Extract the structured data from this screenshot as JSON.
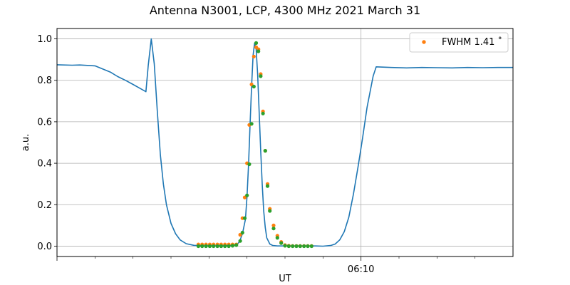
{
  "chart_data": {
    "type": "line",
    "title": "Antenna N3001, LCP, 4300 MHz 2021 March 31",
    "xlabel": "UT",
    "ylabel": "a.u.",
    "xlim": [
      0,
      30
    ],
    "ylim": [
      -0.05,
      1.05
    ],
    "x_unit": "minutes (axis spans about 06:00–06:15 UT; one tick labelled)",
    "x_tick_labels": [
      {
        "x": 20,
        "label": "06:10"
      }
    ],
    "x_ticks": [
      0,
      20
    ],
    "x_minor_ticks": [
      2.5,
      5,
      7.5,
      10,
      12.5,
      15,
      17.5,
      22.5,
      25,
      27.5
    ],
    "y_ticks": [
      0.0,
      0.2,
      0.4,
      0.6,
      0.8,
      1.0
    ],
    "y_tick_labels": [
      "0.0",
      "0.2",
      "0.4",
      "0.6",
      "0.8",
      "1.0"
    ],
    "grid": true,
    "legend": {
      "position": "top-right",
      "entries": [
        {
          "label": "FWHM 1.41$^\\circ$",
          "display": "FWHM 1.41 ˚",
          "marker": "dot",
          "color": "#ff7f0e"
        }
      ]
    },
    "series": [
      {
        "name": "",
        "style": "line",
        "color": "#1f77b4",
        "x": [
          0,
          1,
          1.5,
          2,
          2.5,
          3,
          3.5,
          4,
          4.5,
          5,
          5.5,
          5.85,
          6.0,
          6.2,
          6.4,
          6.6,
          6.8,
          7.0,
          7.2,
          7.5,
          7.8,
          8.1,
          8.5,
          9.0,
          9.5,
          10.0,
          11.0,
          11.8,
          12.0,
          12.2,
          12.4,
          12.5,
          12.6,
          12.7,
          12.8,
          12.9,
          13.0,
          13.1,
          13.2,
          13.3,
          13.4,
          13.5,
          13.6,
          13.7,
          13.8,
          14.0,
          14.2,
          14.5,
          15,
          16,
          17,
          17.5,
          18.0,
          18.3,
          18.6,
          18.9,
          19.2,
          19.5,
          19.8,
          20.1,
          20.4,
          20.8,
          21.0,
          22,
          23,
          24,
          25,
          26,
          27,
          28,
          29,
          30
        ],
        "y": [
          0.875,
          0.873,
          0.874,
          0.872,
          0.87,
          0.855,
          0.84,
          0.818,
          0.8,
          0.78,
          0.76,
          0.745,
          0.87,
          1.0,
          0.88,
          0.65,
          0.44,
          0.3,
          0.2,
          0.11,
          0.06,
          0.03,
          0.012,
          0.004,
          0.002,
          0.002,
          0.002,
          0.005,
          0.02,
          0.06,
          0.13,
          0.24,
          0.39,
          0.58,
          0.77,
          0.92,
          0.98,
          0.95,
          0.83,
          0.65,
          0.46,
          0.3,
          0.17,
          0.09,
          0.04,
          0.01,
          0.003,
          0.001,
          0.001,
          0.001,
          0.001,
          0.0,
          0.003,
          0.01,
          0.03,
          0.07,
          0.14,
          0.25,
          0.38,
          0.52,
          0.67,
          0.82,
          0.865,
          0.862,
          0.86,
          0.862,
          0.861,
          0.86,
          0.862,
          0.861,
          0.862,
          0.862
        ]
      },
      {
        "name": "FWHM 1.41 ˚",
        "style": "dots",
        "color": "#ff7f0e",
        "x": [
          9.3,
          9.55,
          9.8,
          10.05,
          10.3,
          10.55,
          10.8,
          11.05,
          11.3,
          11.55,
          11.8,
          12.05,
          12.2,
          12.35,
          12.5,
          12.65,
          12.8,
          12.95,
          13.1,
          13.25,
          13.4,
          13.55,
          13.7,
          13.85,
          14.0,
          14.25,
          14.5,
          14.75,
          15.0,
          15.25,
          15.5,
          15.75,
          16.0,
          16.25,
          16.5,
          16.75
        ],
        "y": [
          0.008,
          0.008,
          0.008,
          0.008,
          0.008,
          0.008,
          0.008,
          0.008,
          0.008,
          0.008,
          0.008,
          0.055,
          0.135,
          0.235,
          0.4,
          0.585,
          0.78,
          0.915,
          0.96,
          0.95,
          0.83,
          0.65,
          0.46,
          0.3,
          0.18,
          0.1,
          0.05,
          0.02,
          0.005,
          0.002,
          0.001,
          0.001,
          0.001,
          0.001,
          0.001,
          0.001
        ]
      },
      {
        "name": "",
        "style": "dots",
        "color": "#2ca02c",
        "x": [
          9.3,
          9.55,
          9.8,
          10.05,
          10.3,
          10.55,
          10.8,
          11.05,
          11.3,
          11.55,
          11.8,
          12.05,
          12.2,
          12.35,
          12.5,
          12.65,
          12.8,
          12.95,
          13.1,
          13.25,
          13.4,
          13.55,
          13.7,
          13.85,
          14.0,
          14.25,
          14.5,
          14.75,
          15.0,
          15.25,
          15.5,
          15.75,
          16.0,
          16.25,
          16.5,
          16.75
        ],
        "y": [
          0.0,
          0.0,
          0.0,
          0.0,
          0.0,
          0.0,
          0.0,
          0.0,
          0.0,
          0.002,
          0.005,
          0.025,
          0.065,
          0.135,
          0.245,
          0.395,
          0.59,
          0.77,
          0.98,
          0.94,
          0.82,
          0.64,
          0.46,
          0.29,
          0.17,
          0.085,
          0.04,
          0.015,
          0.002,
          0.0,
          0.0,
          0.0,
          0.0,
          0.0,
          0.0,
          0.0
        ]
      }
    ]
  }
}
